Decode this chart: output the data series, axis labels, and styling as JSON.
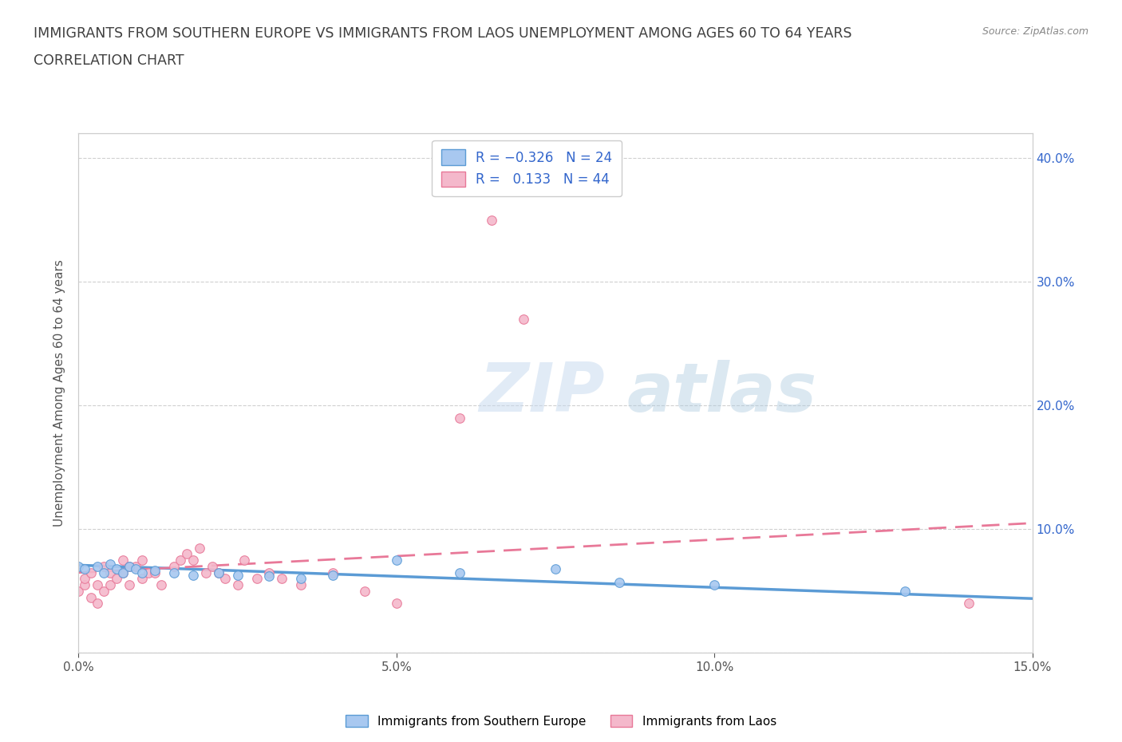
{
  "title_line1": "IMMIGRANTS FROM SOUTHERN EUROPE VS IMMIGRANTS FROM LAOS UNEMPLOYMENT AMONG AGES 60 TO 64 YEARS",
  "title_line2": "CORRELATION CHART",
  "source_text": "Source: ZipAtlas.com",
  "ylabel": "Unemployment Among Ages 60 to 64 years",
  "xlim": [
    0.0,
    0.15
  ],
  "ylim": [
    0.0,
    0.42
  ],
  "blue_color": "#a8c8f0",
  "blue_edge_color": "#5b9bd5",
  "pink_color": "#f4b8cb",
  "pink_edge_color": "#e87898",
  "blue_line_color": "#5b9bd5",
  "pink_line_color": "#e87898",
  "watermark_color": "#dce8f5",
  "grid_color": "#d0d0d0",
  "background_color": "#ffffff",
  "title_color": "#404040",
  "axis_color": "#555555",
  "right_axis_color": "#3366cc",
  "legend_series1": "Immigrants from Southern Europe",
  "legend_series2": "Immigrants from Laos",
  "blue_scatter_x": [
    0.0,
    0.001,
    0.003,
    0.004,
    0.005,
    0.006,
    0.007,
    0.008,
    0.009,
    0.01,
    0.012,
    0.015,
    0.018,
    0.022,
    0.025,
    0.03,
    0.035,
    0.04,
    0.05,
    0.06,
    0.075,
    0.085,
    0.1,
    0.13
  ],
  "blue_scatter_y": [
    0.07,
    0.068,
    0.07,
    0.065,
    0.072,
    0.068,
    0.065,
    0.07,
    0.068,
    0.065,
    0.067,
    0.065,
    0.063,
    0.065,
    0.063,
    0.062,
    0.06,
    0.063,
    0.075,
    0.065,
    0.068,
    0.057,
    0.055,
    0.05
  ],
  "pink_scatter_x": [
    0.0,
    0.001,
    0.001,
    0.002,
    0.002,
    0.003,
    0.003,
    0.004,
    0.004,
    0.005,
    0.005,
    0.006,
    0.007,
    0.007,
    0.008,
    0.008,
    0.009,
    0.01,
    0.01,
    0.011,
    0.012,
    0.013,
    0.015,
    0.016,
    0.017,
    0.018,
    0.019,
    0.02,
    0.021,
    0.022,
    0.023,
    0.025,
    0.026,
    0.028,
    0.03,
    0.032,
    0.035,
    0.04,
    0.045,
    0.05,
    0.06,
    0.065,
    0.07,
    0.14
  ],
  "pink_scatter_y": [
    0.05,
    0.055,
    0.06,
    0.045,
    0.065,
    0.04,
    0.055,
    0.05,
    0.07,
    0.055,
    0.065,
    0.06,
    0.065,
    0.075,
    0.055,
    0.07,
    0.07,
    0.06,
    0.075,
    0.065,
    0.065,
    0.055,
    0.07,
    0.075,
    0.08,
    0.075,
    0.085,
    0.065,
    0.07,
    0.065,
    0.06,
    0.055,
    0.075,
    0.06,
    0.065,
    0.06,
    0.055,
    0.065,
    0.05,
    0.04,
    0.19,
    0.35,
    0.27,
    0.04
  ],
  "blue_trend_x": [
    0.0,
    0.15
  ],
  "blue_trend_y": [
    0.071,
    0.044
  ],
  "pink_trend_x": [
    0.0,
    0.15
  ],
  "pink_trend_y": [
    0.065,
    0.105
  ]
}
